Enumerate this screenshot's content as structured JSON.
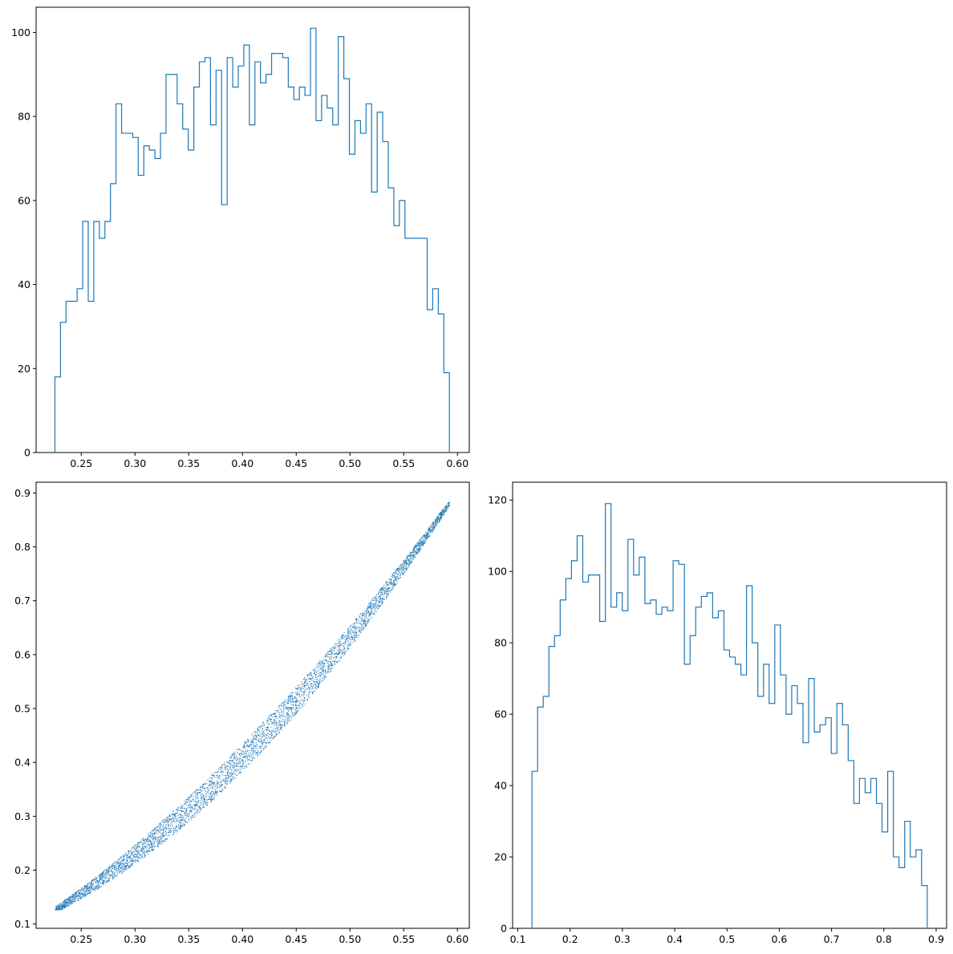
{
  "chart_data": [
    {
      "type": "histogram",
      "panel": "top-left",
      "xlim": [
        0.208,
        0.611
      ],
      "ylim": [
        0,
        106
      ],
      "xticks": [
        "0.25",
        "0.30",
        "0.35",
        "0.40",
        "0.45",
        "0.50",
        "0.55",
        "0.60"
      ],
      "yticks": [
        "0",
        "20",
        "40",
        "60",
        "80",
        "100"
      ],
      "color": "#1f77b4",
      "bin_start": 0.2255,
      "bin_end": 0.5925,
      "counts": [
        18,
        31,
        36,
        36,
        39,
        55,
        36,
        55,
        51,
        55,
        64,
        83,
        76,
        76,
        75,
        66,
        73,
        72,
        70,
        76,
        90,
        90,
        83,
        77,
        72,
        87,
        93,
        94,
        78,
        91,
        59,
        94,
        87,
        92,
        97,
        78,
        93,
        88,
        90,
        95,
        95,
        94,
        87,
        84,
        87,
        85,
        101,
        79,
        85,
        82,
        78,
        99,
        89,
        71,
        79,
        76,
        83,
        62,
        81,
        74,
        63,
        54,
        60,
        51,
        51,
        51,
        51,
        34,
        39,
        33,
        19
      ]
    },
    {
      "type": "scatter",
      "panel": "bottom-left",
      "xlim": [
        0.208,
        0.611
      ],
      "ylim": [
        0.092,
        0.92
      ],
      "xticks": [
        "0.25",
        "0.30",
        "0.35",
        "0.40",
        "0.45",
        "0.50",
        "0.55",
        "0.60"
      ],
      "yticks": [
        "0.1",
        "0.2",
        "0.3",
        "0.4",
        "0.5",
        "0.6",
        "0.7",
        "0.8",
        "0.9"
      ],
      "color": "#1f77b4",
      "x_range": [
        0.2255,
        0.5925
      ],
      "y_range": [
        0.127,
        0.883
      ],
      "point_count": 5000,
      "relation": "y ≈ 2.47·x^1.9 (narrow band)"
    },
    {
      "type": "histogram",
      "panel": "bottom-right",
      "xlim": [
        0.09,
        0.92
      ],
      "ylim": [
        0,
        125
      ],
      "xticks": [
        "0.1",
        "0.2",
        "0.3",
        "0.4",
        "0.5",
        "0.6",
        "0.7",
        "0.8",
        "0.9"
      ],
      "yticks": [
        "0",
        "20",
        "40",
        "60",
        "80",
        "100",
        "120"
      ],
      "color": "#1f77b4",
      "bin_start": 0.127,
      "bin_end": 0.883,
      "counts": [
        44,
        62,
        65,
        79,
        82,
        92,
        98,
        103,
        110,
        97,
        99,
        99,
        86,
        119,
        90,
        94,
        89,
        109,
        99,
        104,
        91,
        92,
        88,
        90,
        89,
        103,
        102,
        74,
        82,
        90,
        93,
        94,
        87,
        89,
        78,
        76,
        74,
        71,
        96,
        80,
        65,
        74,
        63,
        85,
        71,
        60,
        68,
        63,
        52,
        70,
        55,
        57,
        59,
        49,
        63,
        57,
        47,
        35,
        42,
        38,
        42,
        35,
        27,
        44,
        20,
        17,
        30,
        20,
        22,
        12
      ]
    }
  ]
}
